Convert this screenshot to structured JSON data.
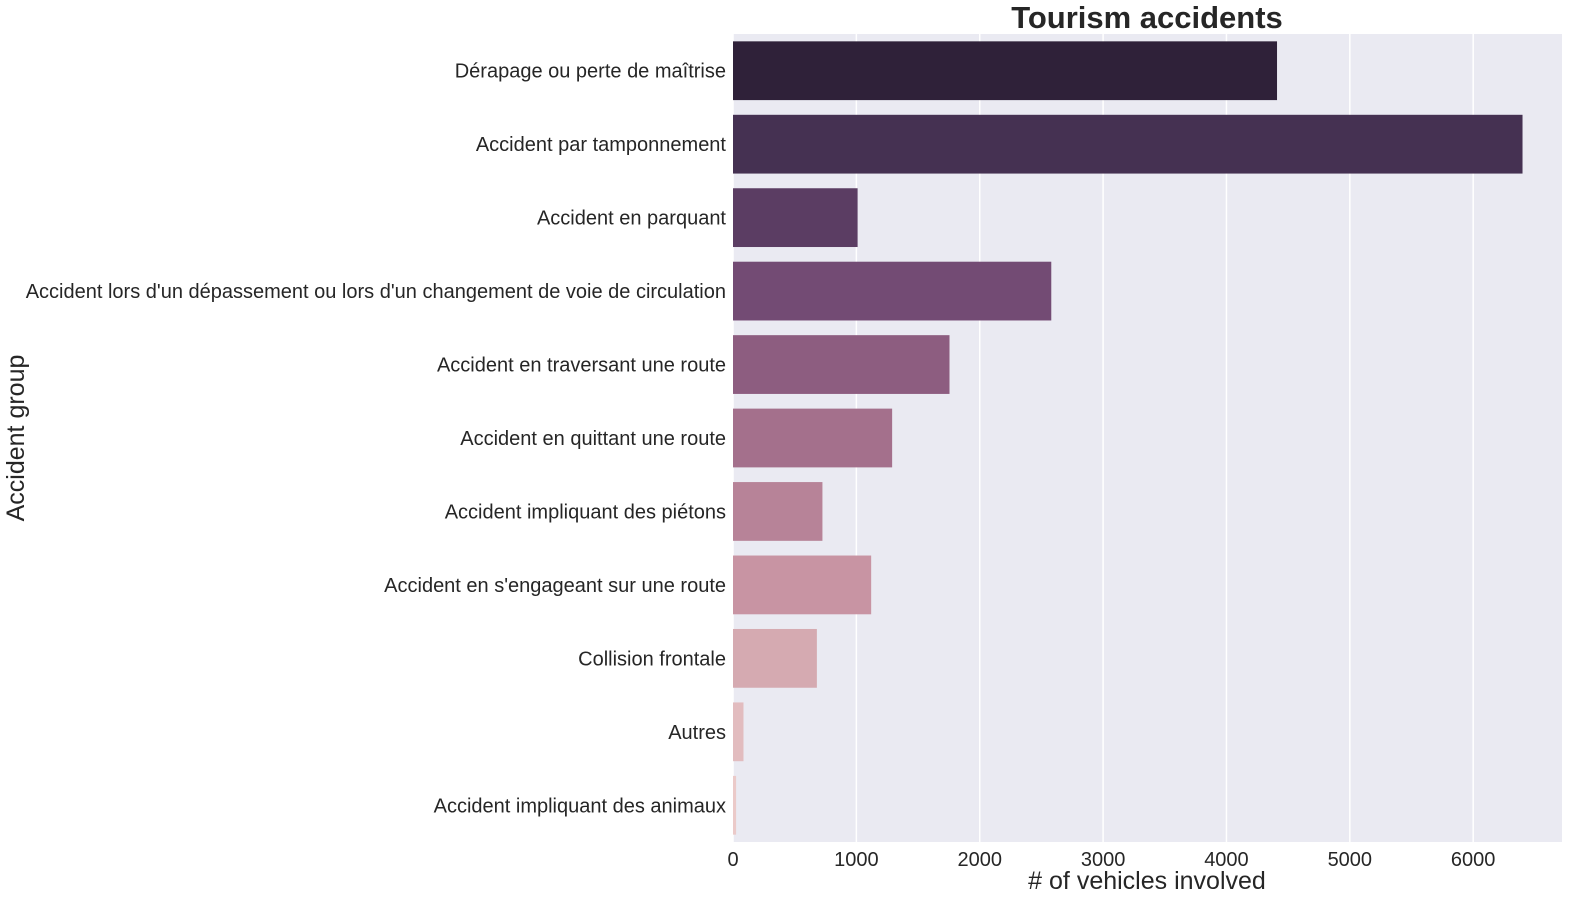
{
  "chart_data": {
    "type": "bar",
    "orientation": "horizontal",
    "title": "Tourism accidents",
    "xlabel": "# of vehicles involved",
    "ylabel": "Accident group",
    "categories": [
      "Dérapage ou perte de maîtrise",
      "Accident par tamponnement",
      "Accident en parquant",
      "Accident lors d'un dépassement ou lors d'un changement de voie de circulation",
      "Accident en traversant une route",
      "Accident en quittant une route",
      "Accident impliquant des piétons",
      "Accident en s'engageant sur une route",
      "Collision frontale",
      "Autres",
      "Accident impliquant des animaux"
    ],
    "values": [
      4410,
      6400,
      1010,
      2580,
      1755,
      1290,
      725,
      1120,
      680,
      85,
      25
    ],
    "xlim": [
      0,
      6720
    ],
    "xticks": [
      0,
      1000,
      2000,
      3000,
      4000,
      5000,
      6000
    ],
    "grid": "x",
    "colors": [
      "#2f2139",
      "#453152",
      "#5b3d63",
      "#734b74",
      "#8d5d80",
      "#a4708c",
      "#b78398",
      "#c894a3",
      "#d5aab1",
      "#e2bcbf",
      "#ebcac9"
    ],
    "background": "#eaeaf2"
  }
}
